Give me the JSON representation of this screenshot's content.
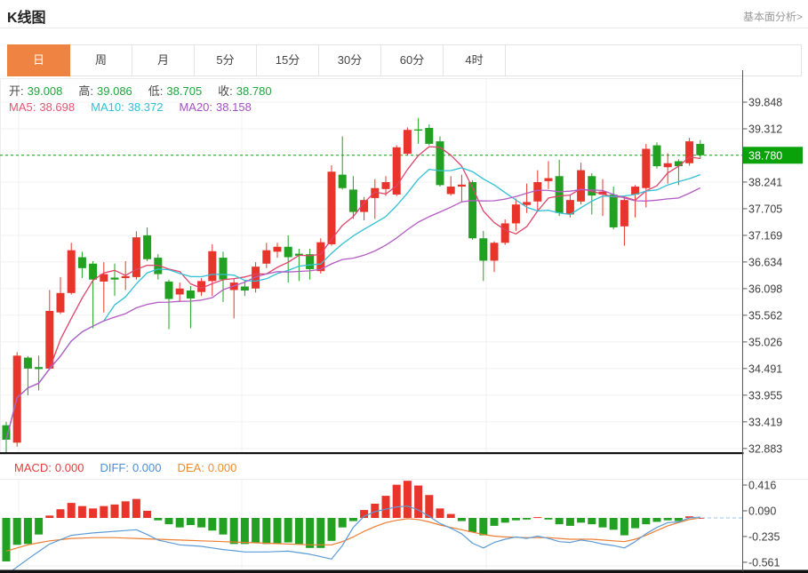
{
  "header": {
    "title": "K线图",
    "link_label": "基本面分析>"
  },
  "tabs": {
    "items": [
      {
        "label": "日",
        "active": true
      },
      {
        "label": "周",
        "active": false
      },
      {
        "label": "月",
        "active": false
      },
      {
        "label": "5分",
        "active": false
      },
      {
        "label": "15分",
        "active": false
      },
      {
        "label": "30分",
        "active": false
      },
      {
        "label": "60分",
        "active": false
      },
      {
        "label": "4时",
        "active": false
      }
    ]
  },
  "legend": {
    "ohlc": [
      {
        "label": "开:",
        "value": "39.008"
      },
      {
        "label": "高:",
        "value": "39.086"
      },
      {
        "label": "低:",
        "value": "38.705"
      },
      {
        "label": "收:",
        "value": "38.780"
      }
    ],
    "ohlc_label_color": "#4a4a4a",
    "ohlc_value_color": "#1ea53c",
    "ma": [
      {
        "label": "MA5:",
        "value": "38.698",
        "color": "#e25575"
      },
      {
        "label": "MA10:",
        "value": "38.372",
        "color": "#2fc0d6"
      },
      {
        "label": "MA20:",
        "value": "38.158",
        "color": "#a351c2"
      }
    ],
    "macd": [
      {
        "label": "MACD:",
        "value": "0.000",
        "color": "#e23d3d"
      },
      {
        "label": "DIFF:",
        "value": "0.000",
        "color": "#4a90d9"
      },
      {
        "label": "DEA:",
        "value": "0.000",
        "color": "#ef8d2e"
      }
    ]
  },
  "colors": {
    "up": "#e8352b",
    "down": "#21a021",
    "ma5": "#e0436a",
    "ma10": "#33bfd4",
    "ma20": "#b45cc4",
    "diff_line": "#5b9bd5",
    "dea_line": "#ed7d31",
    "price_line": "#0ca00c",
    "badge_bg": "#09a309",
    "badge_text": "#ffffff",
    "tab_active_bg": "#ef8342",
    "grid": "#f0f0f0",
    "axis_line": "#555555",
    "axis_text": "#3c3c3c",
    "pane_bottom": "#111111"
  },
  "chart_data": {
    "type": "candlestick_with_macd",
    "title": "K线图",
    "main": {
      "y_ticks": [
        39.848,
        39.312,
        38.78,
        38.241,
        37.705,
        37.169,
        36.634,
        36.098,
        35.562,
        35.026,
        34.491,
        33.955,
        33.419,
        32.883
      ],
      "current_price": 38.78,
      "ma_periods": [
        5,
        10,
        20
      ],
      "candles_order": [
        "open",
        "close",
        "high",
        "low"
      ],
      "up_means": "close>=open (red)",
      "candles": [
        [
          33.35,
          33.06,
          33.42,
          32.79
        ],
        [
          33.0,
          34.75,
          34.82,
          32.92
        ],
        [
          34.71,
          34.49,
          34.74,
          33.95
        ],
        [
          34.52,
          34.48,
          34.75,
          34.05
        ],
        [
          34.49,
          35.65,
          36.07,
          34.46
        ],
        [
          35.62,
          36.01,
          36.33,
          35.59
        ],
        [
          36.01,
          36.87,
          37.02,
          35.98
        ],
        [
          36.73,
          36.51,
          36.84,
          36.31
        ],
        [
          36.6,
          36.28,
          36.65,
          35.3
        ],
        [
          36.24,
          36.39,
          36.63,
          35.62
        ],
        [
          36.32,
          36.28,
          36.6,
          35.95
        ],
        [
          36.31,
          36.35,
          36.65,
          36.07
        ],
        [
          36.33,
          37.13,
          37.25,
          36.28
        ],
        [
          37.17,
          36.69,
          37.33,
          36.65
        ],
        [
          36.72,
          36.39,
          36.79,
          36.28
        ],
        [
          36.24,
          35.89,
          36.28,
          35.28
        ],
        [
          35.98,
          36.1,
          36.22,
          35.83
        ],
        [
          36.06,
          35.9,
          36.15,
          35.3
        ],
        [
          36.03,
          36.25,
          36.31,
          35.95
        ],
        [
          36.25,
          36.85,
          36.99,
          35.95
        ],
        [
          36.72,
          36.28,
          36.84,
          35.83
        ],
        [
          36.07,
          36.22,
          36.3,
          35.5
        ],
        [
          36.14,
          36.06,
          36.25,
          35.95
        ],
        [
          36.1,
          36.54,
          36.63,
          36.02
        ],
        [
          36.6,
          36.87,
          37.02,
          36.51
        ],
        [
          36.84,
          36.94,
          37.02,
          36.72
        ],
        [
          36.94,
          36.73,
          37.17,
          36.22
        ],
        [
          36.8,
          36.76,
          36.9,
          36.25
        ],
        [
          36.79,
          36.49,
          36.9,
          36.28
        ],
        [
          36.45,
          37.03,
          37.11,
          36.4
        ],
        [
          36.99,
          38.45,
          38.58,
          36.96
        ],
        [
          38.39,
          38.12,
          39.16,
          38.09
        ],
        [
          38.09,
          37.64,
          38.36,
          37.5
        ],
        [
          37.64,
          37.88,
          37.94,
          37.47
        ],
        [
          37.92,
          38.12,
          38.3,
          37.5
        ],
        [
          38.1,
          38.24,
          38.36,
          37.96
        ],
        [
          37.99,
          38.94,
          38.98,
          37.96
        ],
        [
          38.81,
          39.29,
          39.34,
          38.78
        ],
        [
          39.3,
          39.28,
          39.53,
          39.01
        ],
        [
          39.33,
          39.01,
          39.4,
          38.98
        ],
        [
          39.06,
          38.18,
          39.16,
          38.15
        ],
        [
          38.0,
          38.15,
          38.36,
          37.97
        ],
        [
          38.15,
          38.19,
          38.39,
          37.85
        ],
        [
          38.24,
          37.11,
          38.28,
          37.08
        ],
        [
          37.11,
          36.66,
          37.26,
          36.25
        ],
        [
          36.66,
          37.02,
          37.05,
          36.43
        ],
        [
          37.02,
          37.41,
          37.49,
          36.98
        ],
        [
          37.41,
          37.79,
          37.91,
          37.26
        ],
        [
          37.78,
          37.84,
          38.21,
          37.62
        ],
        [
          37.85,
          38.24,
          38.48,
          37.66
        ],
        [
          38.26,
          38.32,
          38.66,
          38.1
        ],
        [
          38.36,
          37.62,
          38.69,
          37.56
        ],
        [
          37.59,
          37.88,
          37.97,
          37.53
        ],
        [
          37.85,
          38.48,
          38.63,
          37.79
        ],
        [
          38.36,
          37.97,
          38.42,
          37.59
        ],
        [
          37.99,
          38.05,
          38.3,
          37.56
        ],
        [
          37.99,
          37.33,
          38.15,
          37.29
        ],
        [
          37.35,
          37.88,
          37.91,
          36.96
        ],
        [
          37.99,
          38.15,
          38.18,
          37.53
        ],
        [
          38.12,
          38.91,
          39.01,
          37.73
        ],
        [
          38.98,
          38.56,
          39.04,
          38.51
        ],
        [
          38.54,
          38.62,
          38.82,
          38.21
        ],
        [
          38.66,
          38.56,
          38.7,
          38.18
        ],
        [
          38.62,
          39.06,
          39.13,
          38.57
        ],
        [
          39.008,
          38.78,
          39.086,
          38.705
        ]
      ]
    },
    "macd": {
      "y_ticks": [
        0.416,
        0.09,
        -0.235,
        -0.561
      ],
      "histogram": [
        -0.55,
        -0.34,
        -0.33,
        -0.21,
        0.03,
        0.11,
        0.19,
        0.15,
        0.12,
        0.15,
        0.17,
        0.21,
        0.24,
        0.09,
        -0.03,
        -0.08,
        -0.12,
        -0.09,
        -0.12,
        -0.16,
        -0.21,
        -0.33,
        -0.33,
        -0.31,
        -0.33,
        -0.33,
        -0.31,
        -0.33,
        -0.38,
        -0.38,
        -0.29,
        -0.12,
        -0.04,
        0.1,
        0.18,
        0.28,
        0.42,
        0.47,
        0.41,
        0.29,
        0.12,
        0.05,
        -0.04,
        -0.18,
        -0.22,
        -0.1,
        -0.06,
        -0.03,
        -0.02,
        0.01,
        -0.02,
        -0.08,
        -0.1,
        -0.06,
        -0.08,
        -0.12,
        -0.15,
        -0.22,
        -0.13,
        -0.08,
        -0.05,
        -0.03,
        -0.04,
        0.02,
        0.0
      ],
      "diff": [
        [
          0,
          -0.72
        ],
        [
          2,
          -0.52
        ],
        [
          4,
          -0.33
        ],
        [
          6,
          -0.22
        ],
        [
          8,
          -0.19
        ],
        [
          10,
          -0.17
        ],
        [
          12,
          -0.15
        ],
        [
          13,
          -0.21
        ],
        [
          14,
          -0.28
        ],
        [
          16,
          -0.34
        ],
        [
          18,
          -0.36
        ],
        [
          20,
          -0.4
        ],
        [
          22,
          -0.43
        ],
        [
          24,
          -0.43
        ],
        [
          26,
          -0.42
        ],
        [
          28,
          -0.46
        ],
        [
          30,
          -0.52
        ],
        [
          31,
          -0.35
        ],
        [
          32,
          -0.12
        ],
        [
          33,
          0.02
        ],
        [
          34,
          0.08
        ],
        [
          36,
          0.14
        ],
        [
          37,
          0.15
        ],
        [
          38,
          0.1
        ],
        [
          39,
          0.02
        ],
        [
          40,
          -0.07
        ],
        [
          41,
          -0.13
        ],
        [
          42,
          -0.2
        ],
        [
          43,
          -0.32
        ],
        [
          44,
          -0.38
        ],
        [
          45,
          -0.31
        ],
        [
          46,
          -0.27
        ],
        [
          47,
          -0.24
        ],
        [
          48,
          -0.26
        ],
        [
          49,
          -0.23
        ],
        [
          50,
          -0.26
        ],
        [
          51,
          -0.3
        ],
        [
          52,
          -0.31
        ],
        [
          53,
          -0.28
        ],
        [
          54,
          -0.3
        ],
        [
          55,
          -0.33
        ],
        [
          56,
          -0.35
        ],
        [
          57,
          -0.38
        ],
        [
          58,
          -0.3
        ],
        [
          59,
          -0.2
        ],
        [
          60,
          -0.12
        ],
        [
          61,
          -0.06
        ],
        [
          62,
          -0.05
        ],
        [
          63,
          0.0
        ],
        [
          64,
          0.01
        ]
      ],
      "dea": [
        [
          0,
          -0.42
        ],
        [
          2,
          -0.34
        ],
        [
          4,
          -0.29
        ],
        [
          6,
          -0.26
        ],
        [
          8,
          -0.25
        ],
        [
          10,
          -0.25
        ],
        [
          12,
          -0.26
        ],
        [
          14,
          -0.27
        ],
        [
          16,
          -0.28
        ],
        [
          18,
          -0.29
        ],
        [
          20,
          -0.3
        ],
        [
          22,
          -0.31
        ],
        [
          24,
          -0.32
        ],
        [
          26,
          -0.33
        ],
        [
          28,
          -0.34
        ],
        [
          30,
          -0.34
        ],
        [
          31,
          -0.3
        ],
        [
          32,
          -0.24
        ],
        [
          33,
          -0.17
        ],
        [
          34,
          -0.11
        ],
        [
          35,
          -0.06
        ],
        [
          36,
          -0.03
        ],
        [
          37,
          -0.01
        ],
        [
          38,
          -0.02
        ],
        [
          39,
          -0.05
        ],
        [
          40,
          -0.09
        ],
        [
          41,
          -0.12
        ],
        [
          42,
          -0.15
        ],
        [
          43,
          -0.18
        ],
        [
          44,
          -0.21
        ],
        [
          45,
          -0.23
        ],
        [
          46,
          -0.24
        ],
        [
          48,
          -0.25
        ],
        [
          50,
          -0.25
        ],
        [
          52,
          -0.27
        ],
        [
          54,
          -0.27
        ],
        [
          56,
          -0.29
        ],
        [
          57,
          -0.3
        ],
        [
          58,
          -0.27
        ],
        [
          59,
          -0.22
        ],
        [
          60,
          -0.16
        ],
        [
          61,
          -0.1
        ],
        [
          62,
          -0.06
        ],
        [
          63,
          -0.02
        ],
        [
          64,
          0.0
        ]
      ]
    }
  }
}
